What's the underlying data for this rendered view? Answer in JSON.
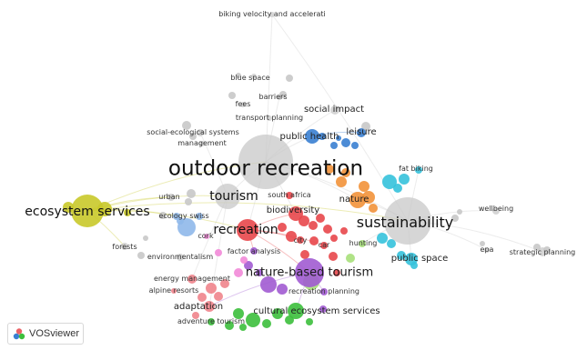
{
  "app": {
    "logo_text": "VOSviewer"
  },
  "colors": {
    "red": "#e8474b",
    "green": "#3cbf3c",
    "blue": "#3a7fd1",
    "yellow": "#c9c92a",
    "purple": "#a15bd1",
    "cyan": "#35c2dc",
    "orange": "#f2923a",
    "grey": "#c8c8c8",
    "pink": "#f28ad8",
    "lightblue": "#8fb8ea",
    "salmon": "#f0848c",
    "lightgreen": "#a7e07a"
  },
  "keywords": [
    {
      "id": "outdoor-recreation",
      "label": "outdoor recreation",
      "cluster": "grey"
    },
    {
      "id": "sustainability",
      "label": "sustainability",
      "cluster": "grey"
    },
    {
      "id": "ecosystem-services",
      "label": "ecosystem services",
      "cluster": "yellow"
    },
    {
      "id": "tourism",
      "label": "tourism",
      "cluster": "grey"
    },
    {
      "id": "recreation",
      "label": "recreation",
      "cluster": "red"
    },
    {
      "id": "nature-based-tourism",
      "label": "nature-based tourism",
      "cluster": "purple"
    },
    {
      "id": "public-health",
      "label": "public health",
      "cluster": "blue"
    },
    {
      "id": "social-impact",
      "label": "social impact",
      "cluster": "grey"
    },
    {
      "id": "leisure",
      "label": "leisure",
      "cluster": "blue"
    },
    {
      "id": "nature",
      "label": "nature",
      "cluster": "orange"
    },
    {
      "id": "biodiversity",
      "label": "biodiversity",
      "cluster": "red"
    },
    {
      "id": "public-space",
      "label": "public space",
      "cluster": "cyan"
    },
    {
      "id": "cultural-ecosystem-services",
      "label": "cultural ecosystem services",
      "cluster": "green"
    },
    {
      "id": "adaptation",
      "label": "adaptation",
      "cluster": "salmon"
    },
    {
      "id": "biking-velocity",
      "label": "biking velocity and accelerati",
      "cluster": "grey"
    },
    {
      "id": "blue-space",
      "label": "blue space",
      "cluster": "grey"
    },
    {
      "id": "barriers",
      "label": "barriers",
      "cluster": "grey"
    },
    {
      "id": "fees",
      "label": "fees",
      "cluster": "grey"
    },
    {
      "id": "transport-planning",
      "label": "transport planning",
      "cluster": "grey"
    },
    {
      "id": "social-ecological-systems",
      "label": "social-ecological systems",
      "cluster": "grey"
    },
    {
      "id": "management",
      "label": "management",
      "cluster": "grey"
    },
    {
      "id": "fat-biking",
      "label": "fat biking",
      "cluster": "cyan"
    },
    {
      "id": "urban",
      "label": "urban",
      "cluster": "grey"
    },
    {
      "id": "south-africa",
      "label": "south africa",
      "cluster": "red"
    },
    {
      "id": "ecology",
      "label": "ecology",
      "cluster": "lightblue"
    },
    {
      "id": "swiss",
      "label": "swiss",
      "cluster": "lightblue"
    },
    {
      "id": "wellbeing",
      "label": "wellbeing",
      "cluster": "grey"
    },
    {
      "id": "cork",
      "label": "cork",
      "cluster": "pink"
    },
    {
      "id": "forests",
      "label": "forests",
      "cluster": "grey"
    },
    {
      "id": "environmentalism",
      "label": "environmentalism",
      "cluster": "grey"
    },
    {
      "id": "factor-analysis",
      "label": "factor analysis",
      "cluster": "purple"
    },
    {
      "id": "city",
      "label": "city",
      "cluster": "red"
    },
    {
      "id": "car",
      "label": "car",
      "cluster": "red"
    },
    {
      "id": "hunting",
      "label": "hunting",
      "cluster": "lightgreen"
    },
    {
      "id": "epa",
      "label": "epa",
      "cluster": "grey"
    },
    {
      "id": "strategic-planning",
      "label": "strategic planning",
      "cluster": "grey"
    },
    {
      "id": "energy-management",
      "label": "energy management",
      "cluster": "salmon"
    },
    {
      "id": "alpine-resorts",
      "label": "alpine resorts",
      "cluster": "salmon"
    },
    {
      "id": "recreation-planning",
      "label": "recreation planning",
      "cluster": "purple"
    },
    {
      "id": "adventure-tourism",
      "label": "adventure tourism",
      "cluster": "green"
    }
  ]
}
